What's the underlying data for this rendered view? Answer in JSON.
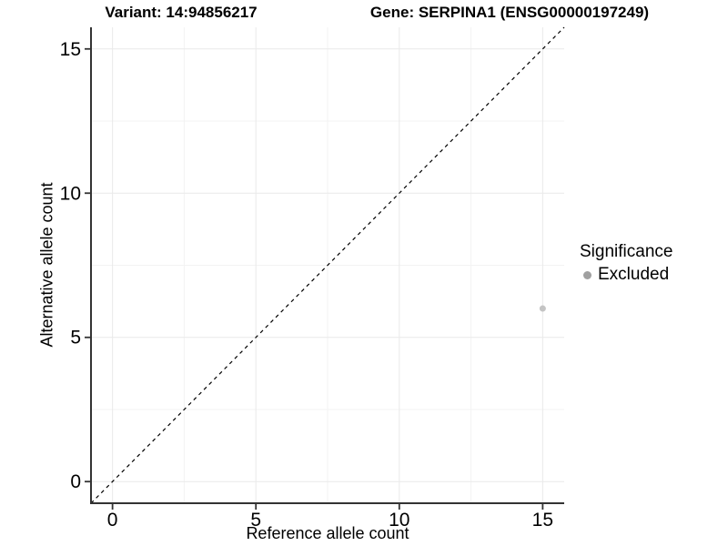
{
  "chart_data": {
    "type": "scatter",
    "title_left": "Variant: 14:94856217",
    "title_right": "Gene: SERPINA1 (ENSG00000197249)",
    "xlabel": "Reference allele count",
    "ylabel": "Alternative allele count",
    "xlim": [
      -0.75,
      15.75
    ],
    "ylim": [
      -0.75,
      15.75
    ],
    "x_ticks": [
      0,
      5,
      10,
      15
    ],
    "y_ticks": [
      0,
      5,
      10,
      15
    ],
    "x_minor_gridlines": [
      2.5,
      7.5,
      12.5
    ],
    "y_minor_gridlines": [
      2.5,
      7.5,
      12.5
    ],
    "grid": true,
    "reference_line": {
      "kind": "identity y = x",
      "slope": 1,
      "intercept": 0,
      "line_style": "dashed",
      "color": "#000000"
    },
    "series": [
      {
        "name": "Excluded",
        "marker_color": "#c4c4c4",
        "points": [
          {
            "x": 15,
            "y": 6
          }
        ]
      }
    ],
    "legend": {
      "title": "Significance",
      "position": "right",
      "items": [
        {
          "label": "Excluded",
          "marker_color": "#a0a0a0"
        }
      ]
    },
    "colors": {
      "background": "#ffffff",
      "axis_line": "#333333",
      "tick_text": "#000000",
      "grid_major": "#e9e9e9",
      "grid_minor": "#f3f3f3"
    }
  }
}
